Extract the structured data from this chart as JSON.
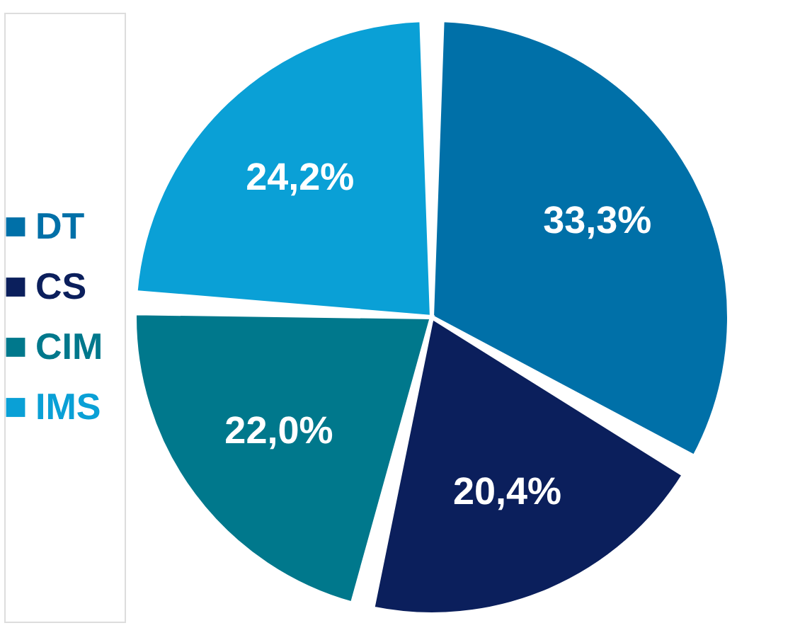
{
  "chart_data": {
    "type": "pie",
    "categories": [
      "DT",
      "CS",
      "CIM",
      "IMS"
    ],
    "values": [
      33.3,
      20.4,
      22.0,
      24.2
    ],
    "value_labels": [
      "33,3%",
      "20,4%",
      "22,0%",
      "24,2%"
    ],
    "colors": [
      "#0070a8",
      "#0b1f5c",
      "#00788c",
      "#0aa0d6"
    ],
    "legend": "left"
  }
}
